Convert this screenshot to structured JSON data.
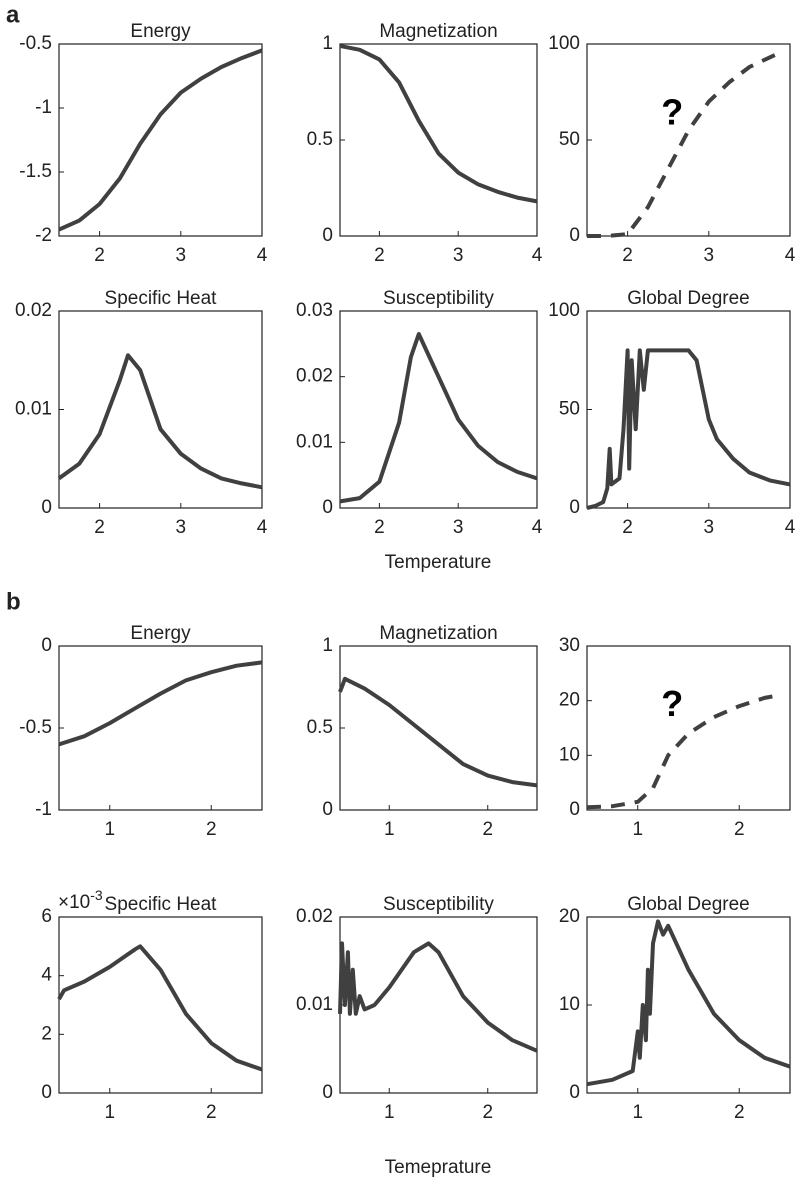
{
  "figure": {
    "panel_labels": [
      "a",
      "b"
    ],
    "xlabels": [
      "Temperature",
      "Temeprature"
    ]
  },
  "chart_data": [
    {
      "type": "line",
      "title": "Energy",
      "x": [
        1.5,
        1.75,
        2,
        2.25,
        2.5,
        2.75,
        3,
        3.25,
        3.5,
        3.75,
        4
      ],
      "values": [
        -1.95,
        -1.88,
        -1.75,
        -1.55,
        -1.28,
        -1.05,
        -0.88,
        -0.77,
        -0.68,
        -0.61,
        -0.55
      ],
      "color": "#404040",
      "xlim": [
        1.5,
        4
      ],
      "xticks": [
        2,
        3,
        4
      ],
      "ylim": [
        -2,
        -0.5
      ],
      "yticks": [
        -2,
        -1.5,
        -1,
        -0.5
      ]
    },
    {
      "type": "line",
      "title": "Magnetization",
      "x": [
        1.5,
        1.75,
        2,
        2.25,
        2.5,
        2.75,
        3,
        3.25,
        3.5,
        3.75,
        4
      ],
      "values": [
        0.99,
        0.97,
        0.92,
        0.8,
        0.6,
        0.43,
        0.33,
        0.27,
        0.23,
        0.2,
        0.18
      ],
      "color": "#404040",
      "xlim": [
        1.5,
        4
      ],
      "xticks": [
        2,
        3,
        4
      ],
      "ylim": [
        0,
        1
      ],
      "yticks": [
        0,
        0.5,
        1
      ]
    },
    {
      "type": "line",
      "annotation": "?",
      "dashed": true,
      "x": [
        1.5,
        1.75,
        2,
        2.25,
        2.5,
        2.75,
        3,
        3.25,
        3.5,
        3.75,
        3.9
      ],
      "values": [
        0,
        0,
        1,
        15,
        35,
        55,
        70,
        80,
        88,
        93,
        96
      ],
      "color": "#404040",
      "xlim": [
        1.5,
        4
      ],
      "xticks": [
        2,
        3,
        4
      ],
      "ylim": [
        0,
        100
      ],
      "yticks": [
        0,
        50,
        100
      ]
    },
    {
      "type": "line",
      "title": "Specific Heat",
      "x": [
        1.5,
        1.75,
        2,
        2.25,
        2.35,
        2.5,
        2.75,
        3,
        3.25,
        3.5,
        3.75,
        4
      ],
      "values": [
        0.003,
        0.0045,
        0.0075,
        0.013,
        0.0155,
        0.014,
        0.008,
        0.0055,
        0.004,
        0.003,
        0.0025,
        0.0021
      ],
      "color": "#404040",
      "xlim": [
        1.5,
        4
      ],
      "xticks": [
        2,
        3,
        4
      ],
      "ylim": [
        0,
        0.02
      ],
      "yticks": [
        0,
        0.01,
        0.02
      ]
    },
    {
      "type": "line",
      "title": "Susceptibility",
      "x": [
        1.5,
        1.75,
        2,
        2.25,
        2.4,
        2.5,
        2.75,
        3,
        3.25,
        3.5,
        3.75,
        4
      ],
      "values": [
        0.001,
        0.0015,
        0.004,
        0.013,
        0.023,
        0.0265,
        0.02,
        0.0135,
        0.0095,
        0.007,
        0.0055,
        0.0045
      ],
      "color": "#404040",
      "xlim": [
        1.5,
        4
      ],
      "xticks": [
        2,
        3,
        4
      ],
      "ylim": [
        0,
        0.03
      ],
      "yticks": [
        0,
        0.01,
        0.02,
        0.03
      ]
    },
    {
      "type": "line",
      "title": "Global Degree",
      "x": [
        1.5,
        1.6,
        1.7,
        1.75,
        1.78,
        1.8,
        1.9,
        1.95,
        2,
        2.02,
        2.05,
        2.1,
        2.15,
        2.2,
        2.25,
        2.5,
        2.75,
        2.85,
        3,
        3.1,
        3.3,
        3.5,
        3.75,
        4
      ],
      "values": [
        0,
        1,
        3,
        10,
        30,
        12,
        15,
        40,
        80,
        20,
        75,
        40,
        80,
        60,
        80,
        80,
        80,
        75,
        45,
        35,
        25,
        18,
        14,
        12
      ],
      "color": "#404040",
      "xlim": [
        1.5,
        4
      ],
      "xticks": [
        2,
        3,
        4
      ],
      "ylim": [
        0,
        100
      ],
      "yticks": [
        0,
        50,
        100
      ]
    },
    {
      "type": "line",
      "title": "Energy",
      "x": [
        0.5,
        0.75,
        1,
        1.25,
        1.5,
        1.75,
        2,
        2.25,
        2.5
      ],
      "values": [
        -0.6,
        -0.55,
        -0.47,
        -0.38,
        -0.29,
        -0.21,
        -0.16,
        -0.12,
        -0.1
      ],
      "color": "#404040",
      "xlim": [
        0.5,
        2.5
      ],
      "xticks": [
        1,
        2
      ],
      "ylim": [
        -1,
        0
      ],
      "yticks": [
        -1,
        -0.5,
        0
      ]
    },
    {
      "type": "line",
      "title": "Magnetization",
      "x": [
        0.5,
        0.55,
        0.75,
        1,
        1.25,
        1.5,
        1.75,
        2,
        2.25,
        2.5
      ],
      "values": [
        0.72,
        0.8,
        0.74,
        0.64,
        0.52,
        0.4,
        0.28,
        0.21,
        0.17,
        0.15
      ],
      "color": "#404040",
      "xlim": [
        0.5,
        2.5
      ],
      "xticks": [
        1,
        2
      ],
      "ylim": [
        0,
        1
      ],
      "yticks": [
        0,
        0.5,
        1
      ]
    },
    {
      "type": "line",
      "annotation": "?",
      "dashed": true,
      "x": [
        0.5,
        0.75,
        1,
        1.15,
        1.3,
        1.5,
        1.75,
        2,
        2.25,
        2.4
      ],
      "values": [
        0.5,
        0.7,
        1.5,
        4,
        10,
        14,
        17,
        19,
        20.5,
        21
      ],
      "color": "#404040",
      "xlim": [
        0.5,
        2.5
      ],
      "xticks": [
        1,
        2
      ],
      "ylim": [
        0,
        30
      ],
      "yticks": [
        0,
        10,
        20,
        30
      ]
    },
    {
      "type": "line",
      "title": "Specific Heat",
      "y_multiplier": "×10",
      "y_multiplier_exponent": "-3",
      "x": [
        0.5,
        0.55,
        0.75,
        1,
        1.25,
        1.3,
        1.5,
        1.75,
        2,
        2.25,
        2.5
      ],
      "values": [
        3.2,
        3.5,
        3.8,
        4.3,
        4.9,
        5.0,
        4.2,
        2.7,
        1.7,
        1.1,
        0.8
      ],
      "color": "#404040",
      "xlim": [
        0.5,
        2.5
      ],
      "xticks": [
        1,
        2
      ],
      "ylim": [
        0,
        6
      ],
      "yticks": [
        0,
        2,
        4,
        6
      ]
    },
    {
      "type": "line",
      "title": "Susceptibility",
      "x": [
        0.5,
        0.52,
        0.55,
        0.58,
        0.6,
        0.63,
        0.66,
        0.7,
        0.75,
        0.85,
        1,
        1.25,
        1.4,
        1.5,
        1.75,
        2,
        2.25,
        2.5
      ],
      "values": [
        0.009,
        0.017,
        0.01,
        0.016,
        0.009,
        0.014,
        0.009,
        0.011,
        0.0095,
        0.01,
        0.012,
        0.016,
        0.017,
        0.016,
        0.011,
        0.008,
        0.006,
        0.0048
      ],
      "color": "#404040",
      "xlim": [
        0.5,
        2.5
      ],
      "xticks": [
        1,
        2
      ],
      "ylim": [
        0,
        0.02
      ],
      "yticks": [
        0,
        0.01,
        0.02
      ]
    },
    {
      "type": "line",
      "title": "Global Degree",
      "x": [
        0.5,
        0.75,
        0.95,
        1,
        1.02,
        1.05,
        1.08,
        1.1,
        1.12,
        1.15,
        1.2,
        1.25,
        1.3,
        1.5,
        1.75,
        2,
        2.25,
        2.5
      ],
      "values": [
        1,
        1.5,
        2.5,
        7,
        4,
        10,
        6,
        14,
        9,
        17,
        19.5,
        18,
        19,
        14,
        9,
        6,
        4,
        3
      ],
      "color": "#404040",
      "xlim": [
        0.5,
        2.5
      ],
      "xticks": [
        1,
        2
      ],
      "ylim": [
        0,
        20
      ],
      "yticks": [
        0,
        10,
        20
      ]
    }
  ]
}
